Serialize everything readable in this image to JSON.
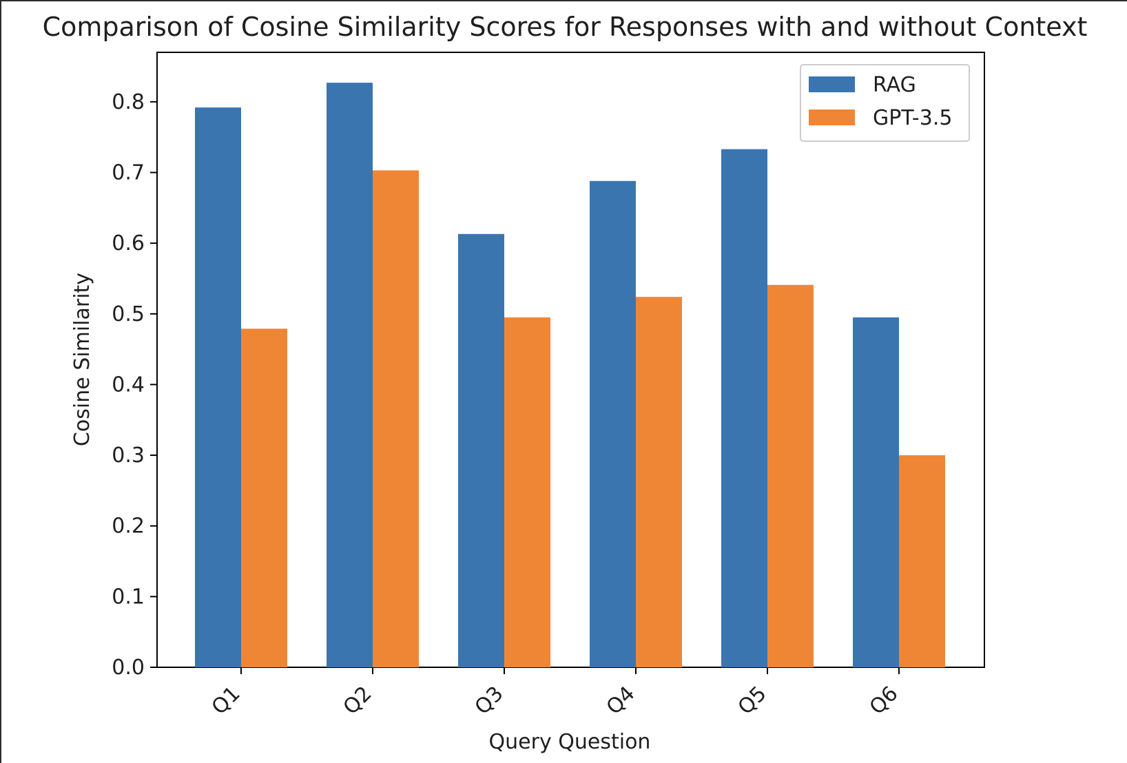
{
  "chart_data": {
    "type": "bar",
    "title": "Comparison of Cosine Similarity Scores for Responses with and without Context",
    "xlabel": "Query Question",
    "ylabel": "Cosine Similarity",
    "categories": [
      "Q1",
      "Q2",
      "Q3",
      "Q4",
      "Q5",
      "Q6"
    ],
    "ylim": [
      0,
      0.87
    ],
    "yticks": [
      "0.0",
      "0.1",
      "0.2",
      "0.3",
      "0.4",
      "0.5",
      "0.6",
      "0.7",
      "0.8"
    ],
    "series": [
      {
        "name": "RAG",
        "color": "#3a75b0",
        "values": [
          0.792,
          0.827,
          0.613,
          0.688,
          0.733,
          0.495
        ]
      },
      {
        "name": "GPT-3.5",
        "color": "#ef8636",
        "values": [
          0.479,
          0.703,
          0.495,
          0.524,
          0.541,
          0.3
        ]
      }
    ],
    "grid": false,
    "legend": "top-right"
  }
}
